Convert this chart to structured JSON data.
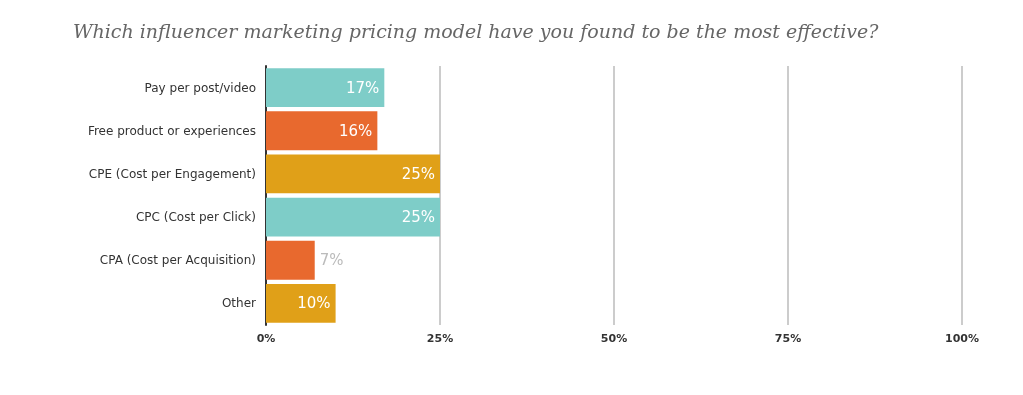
{
  "chart_data": {
    "type": "bar",
    "orientation": "horizontal",
    "title": "Which influencer marketing pricing model have you found to be the most effective?",
    "categories": [
      "Pay per post/video",
      "Free product or experiences",
      "CPE (Cost per Engagement)",
      "CPC (Cost per Click)",
      "CPA (Cost per Acquisition)",
      "Other"
    ],
    "values": [
      17,
      16,
      25,
      25,
      7,
      10
    ],
    "value_labels": [
      "17%",
      "16%",
      "25%",
      "25%",
      "7%",
      "10%"
    ],
    "colors": [
      "#7ecdc8",
      "#e8692e",
      "#e0a018",
      "#7ecdc8",
      "#e8692e",
      "#e0a018"
    ],
    "xlim": [
      0,
      100
    ],
    "xticks": [
      {
        "value": 0,
        "label": "0%"
      },
      {
        "value": 25,
        "label": "25%"
      },
      {
        "value": 50,
        "label": "50%"
      },
      {
        "value": 75,
        "label": "75%"
      },
      {
        "value": 100,
        "label": "100%"
      }
    ],
    "grid": "x"
  }
}
